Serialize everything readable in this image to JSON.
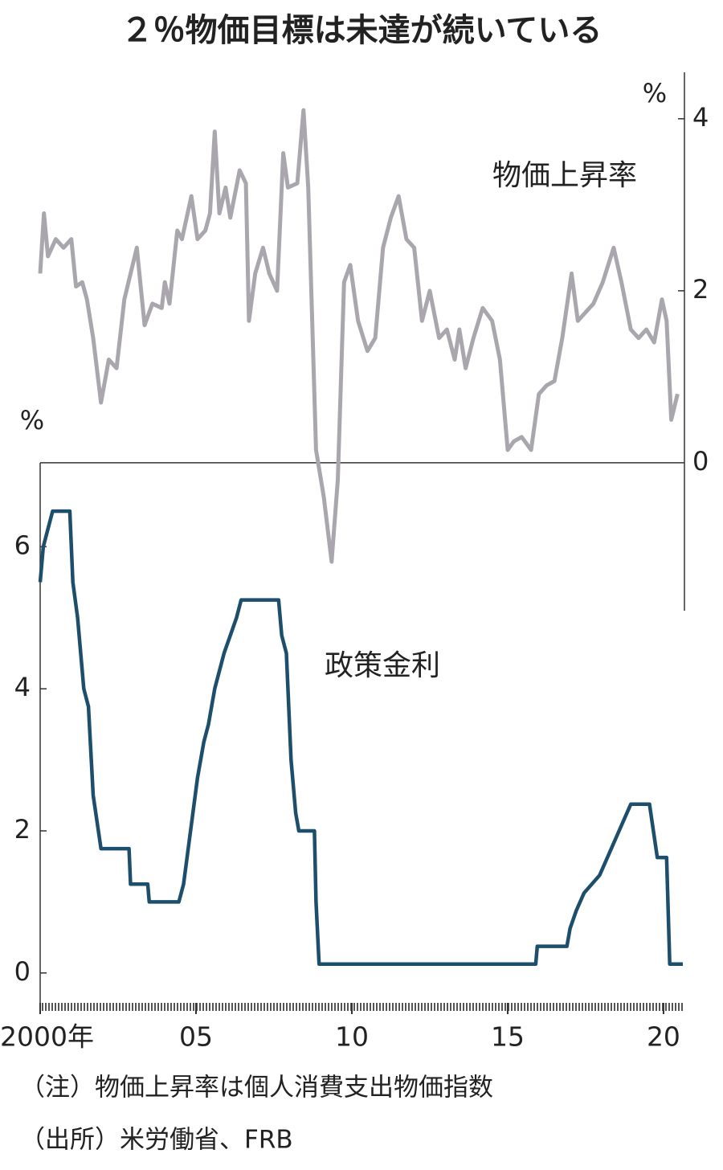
{
  "chart_data": {
    "type": "line",
    "title": "２％物価目標は未達が続いている",
    "y_unit": "%",
    "y2_unit": "%",
    "xlim": [
      2000,
      2020.62
    ],
    "xticks": [
      {
        "value": 2000,
        "label": "2000年"
      },
      {
        "value": 2005,
        "label": "05"
      },
      {
        "value": 2010,
        "label": "10"
      },
      {
        "value": 2015,
        "label": "15"
      },
      {
        "value": 2020,
        "label": "20"
      }
    ],
    "ylim": [
      -0.5,
      7.18
    ],
    "yticks": [
      0,
      2,
      4,
      6
    ],
    "y2lim": [
      -1.72,
      4.54
    ],
    "y2ticks": [
      0,
      2,
      4
    ],
    "series": [
      {
        "name": "物価上昇率",
        "color": "#a9a7ad",
        "axis": "y2",
        "x": [
          2000.0,
          2000.12,
          2000.25,
          2000.5,
          2000.75,
          2001.0,
          2001.15,
          2001.35,
          2001.5,
          2001.7,
          2001.95,
          2002.2,
          2002.45,
          2002.7,
          2003.1,
          2003.35,
          2003.6,
          2003.9,
          2004.0,
          2004.15,
          2004.4,
          2004.55,
          2004.85,
          2005.05,
          2005.3,
          2005.45,
          2005.6,
          2005.75,
          2005.95,
          2006.1,
          2006.4,
          2006.6,
          2006.7,
          2006.9,
          2007.15,
          2007.35,
          2007.6,
          2007.8,
          2007.95,
          2008.25,
          2008.45,
          2008.6,
          2008.85,
          2009.1,
          2009.35,
          2009.55,
          2009.75,
          2009.95,
          2010.2,
          2010.5,
          2010.75,
          2011.0,
          2011.25,
          2011.5,
          2011.75,
          2012.0,
          2012.25,
          2012.5,
          2012.8,
          2013.05,
          2013.3,
          2013.45,
          2013.65,
          2013.9,
          2014.2,
          2014.5,
          2014.75,
          2015.0,
          2015.2,
          2015.45,
          2015.75,
          2016.0,
          2016.25,
          2016.5,
          2016.75,
          2017.05,
          2017.25,
          2017.5,
          2017.75,
          2018.05,
          2018.4,
          2018.65,
          2018.95,
          2019.2,
          2019.45,
          2019.7,
          2019.95,
          2020.1,
          2020.25,
          2020.45
        ],
        "values": [
          2.2,
          2.9,
          2.4,
          2.6,
          2.5,
          2.6,
          2.05,
          2.1,
          1.9,
          1.45,
          0.7,
          1.2,
          1.1,
          1.9,
          2.5,
          1.6,
          1.85,
          1.8,
          2.1,
          1.85,
          2.7,
          2.6,
          3.1,
          2.6,
          2.7,
          2.9,
          3.85,
          2.9,
          3.2,
          2.85,
          3.4,
          3.25,
          1.65,
          2.2,
          2.5,
          2.2,
          2.0,
          3.6,
          3.2,
          3.25,
          4.1,
          3.2,
          0.15,
          -0.4,
          -1.15,
          -0.2,
          2.1,
          2.3,
          1.65,
          1.3,
          1.45,
          2.5,
          2.85,
          3.1,
          2.6,
          2.5,
          1.65,
          2.0,
          1.45,
          1.55,
          1.2,
          1.55,
          1.1,
          1.45,
          1.8,
          1.65,
          1.2,
          0.15,
          0.25,
          0.3,
          0.15,
          0.8,
          0.9,
          0.95,
          1.45,
          2.2,
          1.65,
          1.75,
          1.85,
          2.1,
          2.5,
          2.1,
          1.55,
          1.45,
          1.55,
          1.4,
          1.9,
          1.65,
          0.5,
          0.8
        ]
      },
      {
        "name": "政策金利",
        "color": "#1d4e6b",
        "x": [
          2000,
          2000.1,
          2000.4,
          2000.95,
          2001.05,
          2001.2,
          2001.4,
          2001.55,
          2001.7,
          2001.95,
          2002.85,
          2002.9,
          2003.45,
          2003.5,
          2004.45,
          2004.6,
          2004.75,
          2004.9,
          2005.05,
          2005.25,
          2005.4,
          2005.6,
          2005.75,
          2005.9,
          2006.1,
          2006.3,
          2006.45,
          2007.65,
          2007.75,
          2007.9,
          2008.05,
          2008.2,
          2008.3,
          2008.8,
          2008.85,
          2008.95,
          2015.9,
          2015.95,
          2016.9,
          2017.0,
          2017.2,
          2017.45,
          2017.95,
          2018.2,
          2018.45,
          2018.7,
          2018.95,
          2019.55,
          2019.8,
          2020.1,
          2020.2,
          2020.62
        ],
        "values": [
          5.5,
          6.0,
          6.5,
          6.5,
          5.5,
          5.0,
          4.0,
          3.75,
          2.5,
          1.75,
          1.75,
          1.25,
          1.25,
          1.0,
          1.0,
          1.25,
          1.75,
          2.25,
          2.75,
          3.25,
          3.5,
          4.0,
          4.25,
          4.5,
          4.75,
          5.0,
          5.25,
          5.25,
          4.75,
          4.5,
          3.0,
          2.25,
          2.0,
          2.0,
          1.0,
          0.125,
          0.125,
          0.375,
          0.375,
          0.625,
          0.875,
          1.125,
          1.375,
          1.625,
          1.875,
          2.125,
          2.375,
          2.375,
          1.625,
          1.625,
          0.125,
          0.125
        ]
      }
    ],
    "notes": [
      "（注）物価上昇率は個人消費支出物価指数",
      "（出所）米労働省、FRB"
    ]
  }
}
